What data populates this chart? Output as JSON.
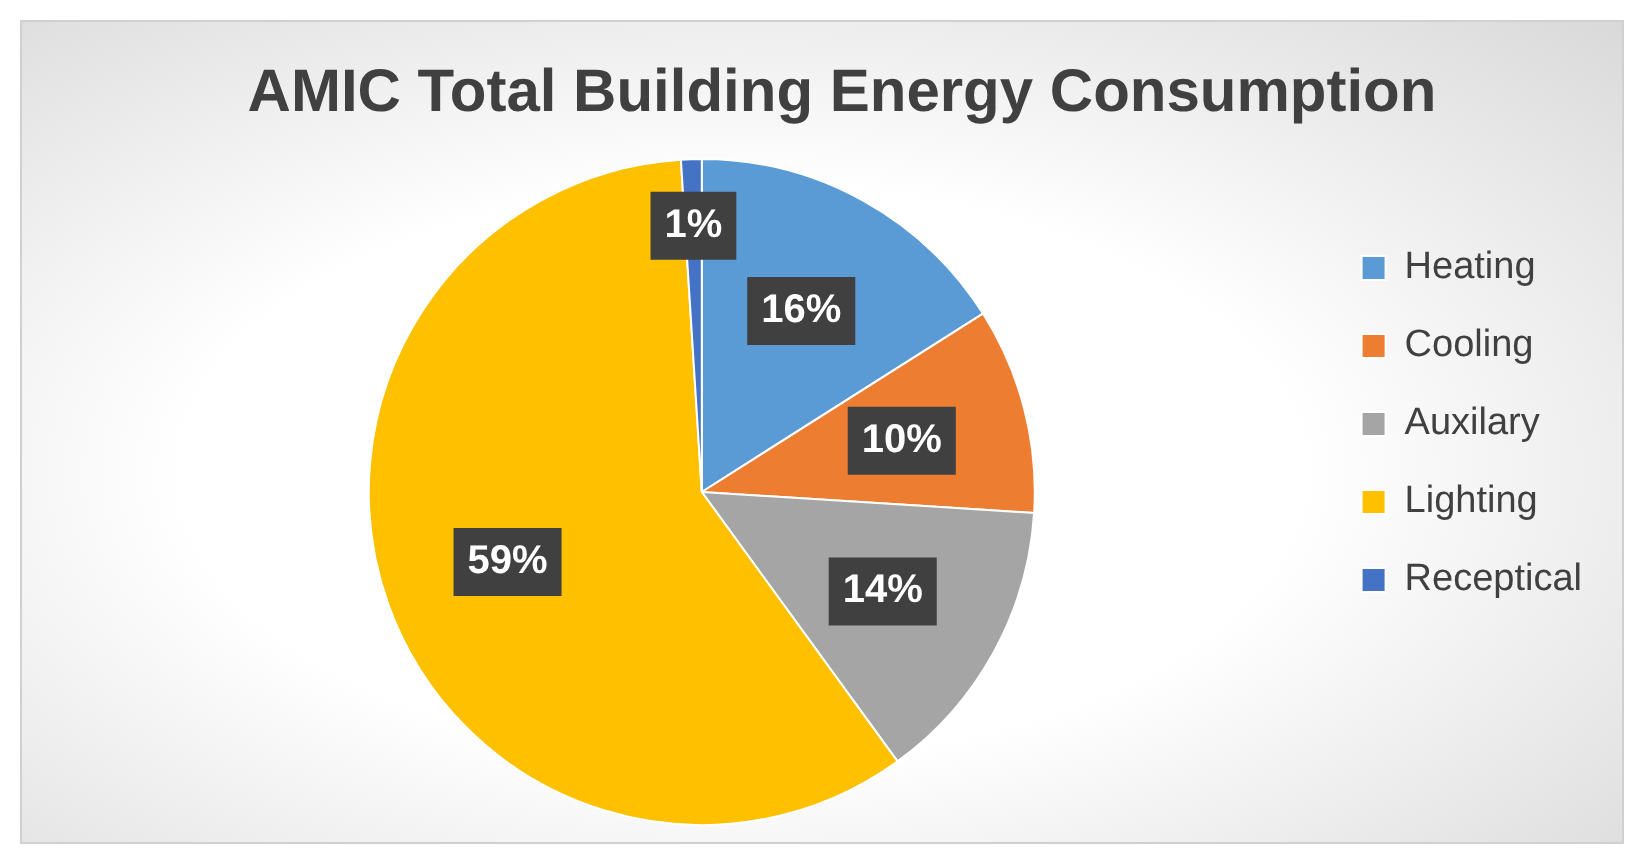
{
  "chart_data": {
    "type": "pie",
    "title": "AMIC Total Building Energy Consumption",
    "categories": [
      "Heating",
      "Cooling",
      "Auxilary",
      "Lighting",
      "Receptical"
    ],
    "values": [
      16,
      10,
      14,
      59,
      1
    ],
    "colors": [
      "#5b9bd5",
      "#ed7d31",
      "#a5a5a5",
      "#ffc000",
      "#4472c4"
    ],
    "value_labels": [
      "16%",
      "10%",
      "14%",
      "59%",
      "1%"
    ],
    "legend": "right"
  }
}
